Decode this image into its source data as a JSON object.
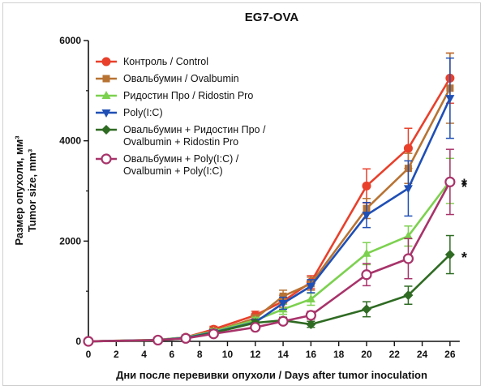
{
  "chart_data": {
    "type": "line",
    "title": "EG7-OVA",
    "xlabel": "Дни после перевивки опухоли / Days after tumor inoculation",
    "ylabel_line1": "Размер опухоли, мм³",
    "ylabel_line2": "Tumor size, mm³",
    "xlim": [
      0,
      27
    ],
    "ylim": [
      0,
      6000
    ],
    "x_ticks": [
      "0",
      "2",
      "4",
      "6",
      "8",
      "10",
      "12",
      "14",
      "16",
      "18",
      "20",
      "22",
      "24",
      "26"
    ],
    "y_ticks": [
      "0",
      "2000",
      "4000",
      "6000"
    ],
    "x": [
      0,
      5,
      7,
      9,
      12,
      14,
      16,
      20,
      23,
      26
    ],
    "series": [
      {
        "name": "Контроль / Control",
        "color": "#e8402b",
        "marker": "circle-filled",
        "values": [
          0,
          30,
          80,
          240,
          520,
          800,
          1180,
          3100,
          3850,
          5250
        ],
        "errors": [
          0,
          20,
          40,
          60,
          80,
          120,
          130,
          340,
          400,
          500
        ]
      },
      {
        "name": "Овальбумин / Ovalbumin",
        "color": "#b87333",
        "marker": "square-filled",
        "values": [
          0,
          25,
          70,
          200,
          460,
          900,
          1150,
          2650,
          3450,
          5050
        ],
        "errors": [
          0,
          20,
          40,
          50,
          70,
          120,
          130,
          200,
          300,
          700
        ]
      },
      {
        "name": "Ридостин Про / Ridostin Pro",
        "color": "#7cd14f",
        "marker": "triangle-up-filled",
        "values": [
          0,
          30,
          80,
          200,
          420,
          640,
          840,
          1750,
          2100,
          3200
        ],
        "errors": [
          0,
          20,
          40,
          50,
          60,
          100,
          120,
          220,
          200,
          450
        ]
      },
      {
        "name": "Poly(I:C)",
        "color": "#1f4fb5",
        "marker": "triangle-down-filled",
        "values": [
          0,
          25,
          70,
          180,
          380,
          760,
          1100,
          2520,
          3050,
          4850
        ],
        "errors": [
          0,
          20,
          40,
          50,
          60,
          120,
          130,
          250,
          550,
          800
        ]
      },
      {
        "name": "Овальбумин + Ридостин Про / Ovalbumin + Ridostin Pro",
        "color": "#2f6b23",
        "marker": "diamond-filled",
        "values": [
          0,
          20,
          60,
          170,
          370,
          420,
          340,
          640,
          920,
          1730
        ],
        "errors": [
          0,
          15,
          30,
          40,
          50,
          60,
          60,
          150,
          180,
          380
        ]
      },
      {
        "name": "Овальбумин + Poly(I:C) / Ovalbumin + Poly(I:C)",
        "color": "#a8336a",
        "marker": "circle-open",
        "values": [
          0,
          25,
          60,
          150,
          280,
          400,
          520,
          1330,
          1650,
          3180
        ],
        "errors": [
          0,
          15,
          30,
          40,
          50,
          60,
          80,
          220,
          400,
          650
        ]
      }
    ],
    "annotations": [
      {
        "text": "*",
        "near_series": "Ридостин Про / Ridostin Pro",
        "x": 26
      },
      {
        "text": "*",
        "near_series": "Овальбумин + Poly(I:C) / Ovalbumin + Poly(I:C)",
        "x": 26
      },
      {
        "text": "*",
        "near_series": "Овальбумин + Ридостин Про / Ovalbumin + Ridostin Pro",
        "x": 26
      }
    ],
    "legend": {
      "placement": "top-left",
      "lines": [
        [
          "Контроль / Control"
        ],
        [
          "Овальбумин / Ovalbumin"
        ],
        [
          "Ридостин Про / Ridostin Pro"
        ],
        [
          "Poly(I:C)"
        ],
        [
          "Овальбумин + Ридостин Про /",
          "Ovalbumin + Ridostin Pro"
        ],
        [
          "Овальбумин + Poly(I:C) /",
          "Ovalbumin + Poly(I:C)"
        ]
      ]
    },
    "grid": false
  }
}
